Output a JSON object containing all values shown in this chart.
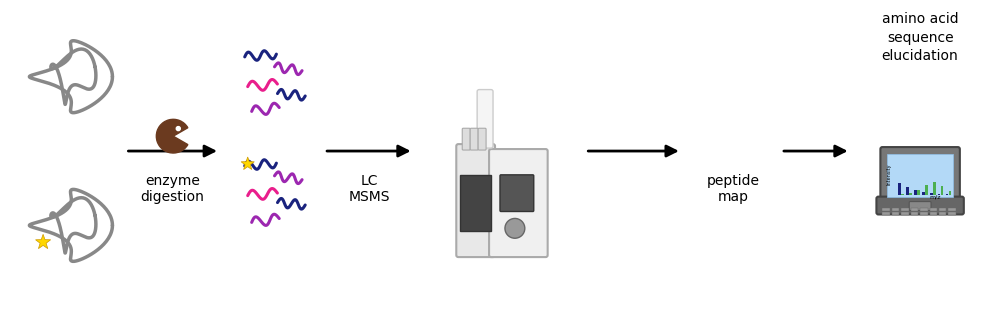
{
  "figsize": [
    9.96,
    3.11
  ],
  "dpi": 100,
  "background_color": "#ffffff",
  "arrow_color": "#000000",
  "arrow_lw": 2.0,
  "text_enzyme": "enzyme\ndigestion",
  "text_lcmsms": "LC\nMSMS",
  "text_peptide": "peptide\nmap",
  "text_amino": "amino acid\nsequence\nelucidation",
  "font_size_labels": 10,
  "font_size_amino": 10,
  "capsid_color": "#888888",
  "enzyme_color": "#6b3a1f",
  "peptide_colors_blue": "#1a237e",
  "peptide_colors_purple": "#9c27b0",
  "peptide_colors_magenta": "#e91e8c",
  "star_color": "#FFD700",
  "ms_bar_color_blue": "#1a237e",
  "ms_bar_color_green": "#4caf50",
  "laptop_color": "#555555",
  "screen_color": "#90caf9"
}
